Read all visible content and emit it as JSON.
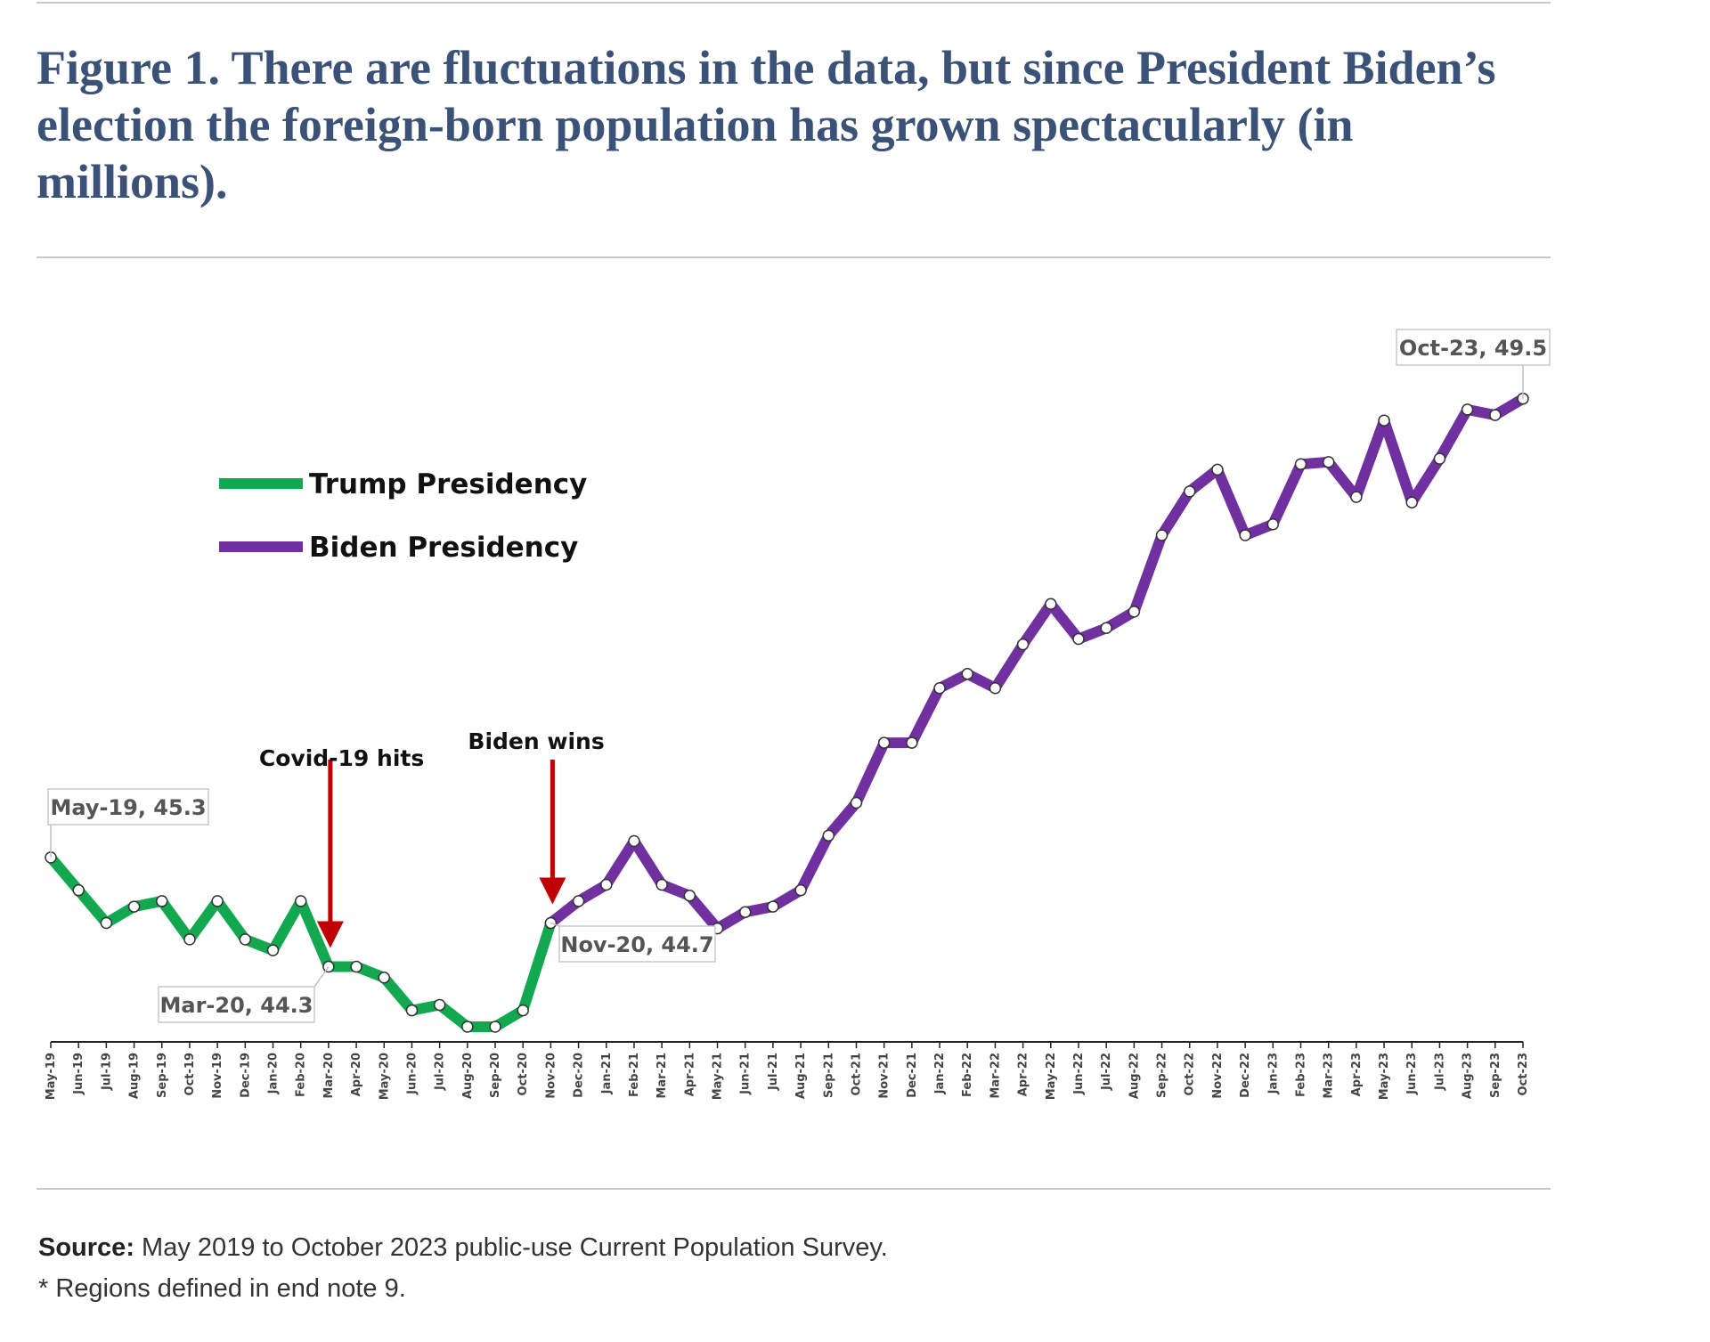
{
  "figure": {
    "title": "Figure 1. There are fluctuations in the data, but since President Biden’s election the foreign-born population has grown spectacularly (in millions)."
  },
  "chart_data": {
    "type": "line",
    "title": "Figure 1. There are fluctuations in the data, but since President Biden’s election the foreign-born population has grown spectacularly (in millions).",
    "xlabel": "",
    "ylabel": "",
    "ylim": [
      43.0,
      50.5
    ],
    "grid": false,
    "legend_position": "top-left",
    "categories": [
      "May-19",
      "Jun-19",
      "Jul-19",
      "Aug-19",
      "Sep-19",
      "Oct-19",
      "Nov-19",
      "Dec-19",
      "Jan-20",
      "Feb-20",
      "Mar-20",
      "Apr-20",
      "May-20",
      "Jun-20",
      "Jul-20",
      "Aug-20",
      "Sep-20",
      "Oct-20",
      "Nov-20",
      "Dec-20",
      "Jan-21",
      "Feb-21",
      "Mar-21",
      "Apr-21",
      "May-21",
      "Jun-21",
      "Jul-21",
      "Aug-21",
      "Sep-21",
      "Oct-21",
      "Nov-21",
      "Dec-21",
      "Jan-22",
      "Feb-22",
      "Mar-22",
      "Apr-22",
      "May-22",
      "Jun-22",
      "Jul-22",
      "Aug-22",
      "Sep-22",
      "Oct-22",
      "Nov-22",
      "Dec-22",
      "Jan-23",
      "Feb-23",
      "Mar-23",
      "Apr-23",
      "May-23",
      "Jun-23",
      "Jul-23",
      "Aug-23",
      "Sep-23",
      "Oct-23"
    ],
    "series": [
      {
        "name": "Trump Presidency",
        "color": "#12a84f",
        "values": [
          45.3,
          45.0,
          44.7,
          44.85,
          44.9,
          44.55,
          44.9,
          44.55,
          44.45,
          44.9,
          44.3,
          44.3,
          44.2,
          43.9,
          43.95,
          43.75,
          43.75,
          43.9,
          44.7,
          null,
          null,
          null,
          null,
          null,
          null,
          null,
          null,
          null,
          null,
          null,
          null,
          null,
          null,
          null,
          null,
          null,
          null,
          null,
          null,
          null,
          null,
          null,
          null,
          null,
          null,
          null,
          null,
          null,
          null,
          null,
          null,
          null,
          null,
          null
        ]
      },
      {
        "name": "Biden Presidency",
        "color": "#7030a0",
        "values": [
          null,
          null,
          null,
          null,
          null,
          null,
          null,
          null,
          null,
          null,
          null,
          null,
          null,
          null,
          null,
          null,
          null,
          null,
          44.7,
          44.9,
          45.05,
          45.45,
          45.05,
          44.95,
          44.65,
          44.8,
          44.85,
          45.0,
          45.5,
          45.8,
          46.35,
          46.35,
          46.85,
          46.98,
          46.85,
          47.25,
          47.62,
          47.3,
          47.4,
          47.55,
          48.25,
          48.65,
          48.85,
          48.25,
          48.35,
          48.9,
          48.92,
          48.6,
          49.3,
          48.55,
          48.95,
          49.4,
          49.35,
          49.5
        ]
      }
    ],
    "legend": [
      {
        "label": "Trump Presidency",
        "color": "#12a84f"
      },
      {
        "label": "Biden Presidency",
        "color": "#7030a0"
      }
    ],
    "data_labels": [
      {
        "category": "May-19",
        "text": "May-19,  45.3"
      },
      {
        "category": "Mar-20",
        "text": "Mar-20,  44.3"
      },
      {
        "category": "Nov-20",
        "text": "Nov-20,  44.7"
      },
      {
        "category": "Oct-23",
        "text": "Oct-23,  49.5"
      }
    ],
    "annotations": [
      {
        "category": "Mar-20",
        "text": "Covid-19 hits",
        "arrow_color": "#c00000"
      },
      {
        "category": "Nov-20",
        "text": "Biden wins",
        "arrow_color": "#c00000"
      }
    ]
  },
  "footer": {
    "source_label": "Source:",
    "source_text": " May 2019 to October 2023 public-use Current Population Survey.",
    "note": "* Regions defined in end note 9."
  }
}
